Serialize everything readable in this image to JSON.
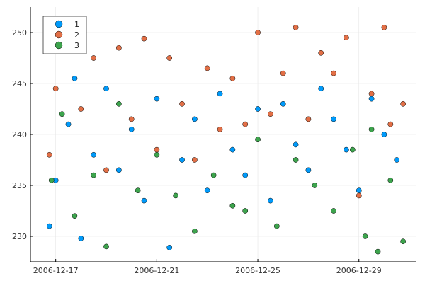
{
  "chart_data": {
    "type": "scatter",
    "title": "",
    "xlabel": "",
    "ylabel": "",
    "x_range": [
      "2006-12-16T00:00",
      "2006-12-31T06:00"
    ],
    "ylim": [
      227.5,
      252.5
    ],
    "x_ticks": [
      {
        "label": "2006-12-17",
        "value": "2006-12-17"
      },
      {
        "label": "2006-12-21",
        "value": "2006-12-21"
      },
      {
        "label": "2006-12-25",
        "value": "2006-12-25"
      },
      {
        "label": "2006-12-29",
        "value": "2006-12-29"
      }
    ],
    "y_ticks": [
      {
        "label": "230",
        "value": 230
      },
      {
        "label": "235",
        "value": 235
      },
      {
        "label": "240",
        "value": 240
      },
      {
        "label": "245",
        "value": 245
      },
      {
        "label": "250",
        "value": 250
      }
    ],
    "grid": true,
    "legend_position": "top-left",
    "series": [
      {
        "name": "1",
        "color": "#009AFA",
        "points": [
          {
            "x": "2006-12-16T18:00",
            "y": 231.0
          },
          {
            "x": "2006-12-17T00:00",
            "y": 235.5
          },
          {
            "x": "2006-12-17T12:00",
            "y": 241.0
          },
          {
            "x": "2006-12-17T18:00",
            "y": 245.5
          },
          {
            "x": "2006-12-18T00:00",
            "y": 229.8
          },
          {
            "x": "2006-12-18T12:00",
            "y": 238.0
          },
          {
            "x": "2006-12-19T00:00",
            "y": 244.5
          },
          {
            "x": "2006-12-19T12:00",
            "y": 236.5
          },
          {
            "x": "2006-12-20T00:00",
            "y": 240.5
          },
          {
            "x": "2006-12-20T12:00",
            "y": 233.5
          },
          {
            "x": "2006-12-21T00:00",
            "y": 243.5
          },
          {
            "x": "2006-12-21T12:00",
            "y": 228.9
          },
          {
            "x": "2006-12-22T00:00",
            "y": 237.5
          },
          {
            "x": "2006-12-22T12:00",
            "y": 241.5
          },
          {
            "x": "2006-12-23T00:00",
            "y": 234.5
          },
          {
            "x": "2006-12-23T12:00",
            "y": 244.0
          },
          {
            "x": "2006-12-24T00:00",
            "y": 238.5
          },
          {
            "x": "2006-12-24T12:00",
            "y": 236.0
          },
          {
            "x": "2006-12-25T00:00",
            "y": 242.5
          },
          {
            "x": "2006-12-25T12:00",
            "y": 233.5
          },
          {
            "x": "2006-12-26T00:00",
            "y": 243.0
          },
          {
            "x": "2006-12-26T12:00",
            "y": 239.0
          },
          {
            "x": "2006-12-27T00:00",
            "y": 236.5
          },
          {
            "x": "2006-12-27T12:00",
            "y": 244.5
          },
          {
            "x": "2006-12-28T00:00",
            "y": 241.5
          },
          {
            "x": "2006-12-28T12:00",
            "y": 238.5
          },
          {
            "x": "2006-12-29T00:00",
            "y": 234.5
          },
          {
            "x": "2006-12-29T12:00",
            "y": 243.5
          },
          {
            "x": "2006-12-30T00:00",
            "y": 240.0
          },
          {
            "x": "2006-12-30T12:00",
            "y": 237.5
          }
        ]
      },
      {
        "name": "2",
        "color": "#E26F46",
        "points": [
          {
            "x": "2006-12-16T18:00",
            "y": 238.0
          },
          {
            "x": "2006-12-17T00:00",
            "y": 244.5
          },
          {
            "x": "2006-12-17T06:00",
            "y": 248.5
          },
          {
            "x": "2006-12-18T00:00",
            "y": 242.5
          },
          {
            "x": "2006-12-18T12:00",
            "y": 247.5
          },
          {
            "x": "2006-12-19T00:00",
            "y": 236.5
          },
          {
            "x": "2006-12-19T12:00",
            "y": 248.5
          },
          {
            "x": "2006-12-20T00:00",
            "y": 241.5
          },
          {
            "x": "2006-12-20T12:00",
            "y": 249.4
          },
          {
            "x": "2006-12-21T00:00",
            "y": 238.5
          },
          {
            "x": "2006-12-21T12:00",
            "y": 247.5
          },
          {
            "x": "2006-12-22T00:00",
            "y": 243.0
          },
          {
            "x": "2006-12-22T12:00",
            "y": 237.5
          },
          {
            "x": "2006-12-23T00:00",
            "y": 246.5
          },
          {
            "x": "2006-12-23T12:00",
            "y": 240.5
          },
          {
            "x": "2006-12-24T00:00",
            "y": 245.5
          },
          {
            "x": "2006-12-24T12:00",
            "y": 241.0
          },
          {
            "x": "2006-12-25T00:00",
            "y": 250.0
          },
          {
            "x": "2006-12-25T12:00",
            "y": 242.0
          },
          {
            "x": "2006-12-26T00:00",
            "y": 246.0
          },
          {
            "x": "2006-12-26T12:00",
            "y": 250.5
          },
          {
            "x": "2006-12-27T00:00",
            "y": 241.5
          },
          {
            "x": "2006-12-27T12:00",
            "y": 248.0
          },
          {
            "x": "2006-12-28T00:00",
            "y": 246.0
          },
          {
            "x": "2006-12-28T12:00",
            "y": 249.5
          },
          {
            "x": "2006-12-29T00:00",
            "y": 234.0
          },
          {
            "x": "2006-12-29T12:00",
            "y": 244.0
          },
          {
            "x": "2006-12-30T00:00",
            "y": 250.5
          },
          {
            "x": "2006-12-30T06:00",
            "y": 241.0
          },
          {
            "x": "2006-12-30T18:00",
            "y": 243.0
          }
        ]
      },
      {
        "name": "3",
        "color": "#3DA44D",
        "points": [
          {
            "x": "2006-12-16T20:00",
            "y": 235.5
          },
          {
            "x": "2006-12-17T06:00",
            "y": 242.0
          },
          {
            "x": "2006-12-17T18:00",
            "y": 232.0
          },
          {
            "x": "2006-12-18T12:00",
            "y": 236.0
          },
          {
            "x": "2006-12-19T00:00",
            "y": 229.0
          },
          {
            "x": "2006-12-19T12:00",
            "y": 243.0
          },
          {
            "x": "2006-12-20T06:00",
            "y": 234.5
          },
          {
            "x": "2006-12-21T00:00",
            "y": 238.0
          },
          {
            "x": "2006-12-21T18:00",
            "y": 234.0
          },
          {
            "x": "2006-12-22T12:00",
            "y": 230.5
          },
          {
            "x": "2006-12-23T06:00",
            "y": 236.0
          },
          {
            "x": "2006-12-24T00:00",
            "y": 233.0
          },
          {
            "x": "2006-12-24T12:00",
            "y": 232.5
          },
          {
            "x": "2006-12-25T00:00",
            "y": 239.5
          },
          {
            "x": "2006-12-25T18:00",
            "y": 231.0
          },
          {
            "x": "2006-12-26T12:00",
            "y": 237.5
          },
          {
            "x": "2006-12-27T06:00",
            "y": 235.0
          },
          {
            "x": "2006-12-28T00:00",
            "y": 232.5
          },
          {
            "x": "2006-12-28T18:00",
            "y": 238.5
          },
          {
            "x": "2006-12-29T06:00",
            "y": 230.0
          },
          {
            "x": "2006-12-29T12:00",
            "y": 240.5
          },
          {
            "x": "2006-12-29T18:00",
            "y": 228.5
          },
          {
            "x": "2006-12-30T06:00",
            "y": 235.5
          },
          {
            "x": "2006-12-30T18:00",
            "y": 229.5
          }
        ]
      }
    ]
  }
}
